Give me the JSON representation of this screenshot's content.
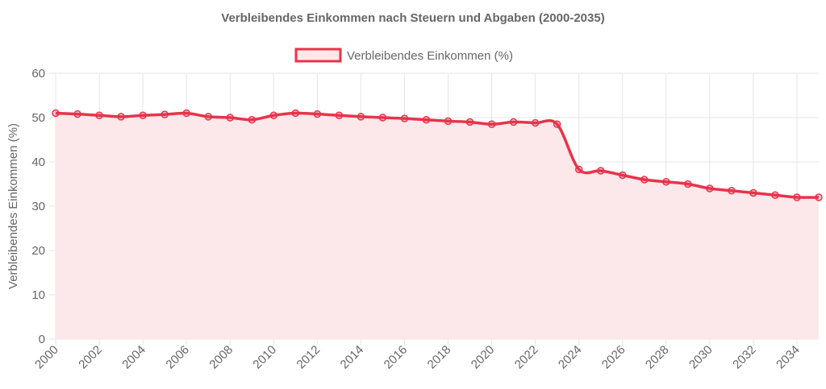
{
  "chart_data": {
    "type": "area",
    "title": "Verbleibendes Einkommen nach Steuern und Abgaben (2000-2035)",
    "xlabel": "",
    "ylabel": "Verbleibendes Einkommen (%)",
    "ylim": [
      0,
      60
    ],
    "yticks": [
      "0",
      "10",
      "20",
      "30",
      "40",
      "50",
      "60"
    ],
    "xticks": [
      "2000",
      "2002",
      "2004",
      "2006",
      "2008",
      "2010",
      "2012",
      "2014",
      "2016",
      "2018",
      "2020",
      "2022",
      "2024",
      "2026",
      "2028",
      "2030",
      "2032",
      "2034"
    ],
    "x": [
      2000,
      2001,
      2002,
      2003,
      2004,
      2005,
      2006,
      2007,
      2008,
      2009,
      2010,
      2011,
      2012,
      2013,
      2014,
      2015,
      2016,
      2017,
      2018,
      2019,
      2020,
      2021,
      2022,
      2023,
      2024,
      2025,
      2026,
      2027,
      2028,
      2029,
      2030,
      2031,
      2032,
      2033,
      2034,
      2035
    ],
    "series": [
      {
        "name": "Verbleibendes Einkommen (%)",
        "values": [
          51,
          50.8,
          50.5,
          50.2,
          50.5,
          50.7,
          51,
          50.2,
          50,
          49.5,
          50.5,
          51,
          50.8,
          50.5,
          50.2,
          50,
          49.8,
          49.5,
          49.2,
          49,
          48.5,
          49,
          48.8,
          48.5,
          38.3,
          38,
          37,
          36,
          35.5,
          35,
          34,
          33.5,
          33,
          32.5,
          32,
          32
        ],
        "color": "#e8334a",
        "fill": "#fce8eb"
      }
    ],
    "grid": true,
    "legend": "top"
  }
}
